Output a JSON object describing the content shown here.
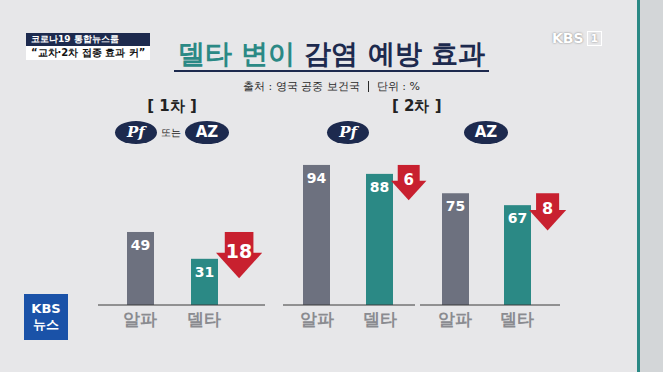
{
  "broadcast": {
    "program": "코로나19 통합뉴스룸",
    "headline": "“교차·2차 접종 효과 커”",
    "channel_logo": {
      "name": "KBS",
      "channel": "1"
    },
    "news_logo": {
      "name": "KBS",
      "label": "뉴스"
    }
  },
  "title": "델타 변이 감염 예방 효과",
  "title_highlight": "델타 변이",
  "source": "출처 : 영국 공중 보건국",
  "unit": "단위 : %",
  "chart_data": [
    {
      "type": "bar",
      "stage": "[ 1차 ]",
      "vaccines": [
        "Pf",
        "AZ"
      ],
      "vaccine_joiner": "또는",
      "categories": [
        "알파",
        "델타"
      ],
      "values": [
        49,
        31
      ],
      "colors": [
        "#6d717f",
        "#2b8985"
      ],
      "ylim": [
        0,
        100
      ],
      "data_labels": true,
      "tick_labels": "x",
      "difference": 18
    },
    {
      "type": "bar",
      "stage": "[ 2차 ]",
      "vaccines": [
        "Pf"
      ],
      "categories": [
        "알파",
        "델타"
      ],
      "values": [
        94,
        88
      ],
      "colors": [
        "#6d717f",
        "#2b8985"
      ],
      "ylim": [
        0,
        100
      ],
      "data_labels": true,
      "tick_labels": "x",
      "difference": 6
    },
    {
      "type": "bar",
      "stage": "[ 2차 ]",
      "vaccines": [
        "AZ"
      ],
      "categories": [
        "알파",
        "델타"
      ],
      "values": [
        75,
        67
      ],
      "colors": [
        "#6d717f",
        "#2b8985"
      ],
      "ylim": [
        0,
        100
      ],
      "data_labels": true,
      "tick_labels": "x",
      "difference": 8
    }
  ]
}
